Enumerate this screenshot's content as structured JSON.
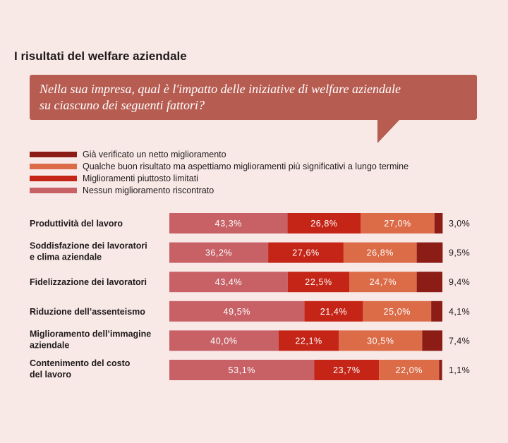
{
  "title": "I risultati del welfare aziendale",
  "question": {
    "line1": "Nella sua impresa, qual è l'impatto delle iniziative di welfare aziendale",
    "line2": "su ciascuno dei seguenti fattori?"
  },
  "colors": {
    "background": "#f8e9e7",
    "bubble": "#b75c51",
    "netto": "#8b1c16",
    "qualche": "#dc6b47",
    "limitati": "#c42517",
    "nessun": "#c76166"
  },
  "chart_data": {
    "type": "bar",
    "orientation": "horizontal",
    "stacked": true,
    "xlim": [
      0,
      100
    ],
    "legend": [
      {
        "key": "netto",
        "label": "Già verificato un netto miglioramento"
      },
      {
        "key": "qualche",
        "label": "Qualche buon risultato ma aspettiamo miglioramenti più significativi a lungo termine"
      },
      {
        "key": "limitati",
        "label": "Miglioramenti piuttosto limitati"
      },
      {
        "key": "nessun",
        "label": "Nessun miglioramento riscontrato"
      }
    ],
    "categories": [
      [
        "Produttività del lavoro"
      ],
      [
        "Soddisfazione dei lavoratori",
        "e clima aziendale"
      ],
      [
        "Fidelizzazione dei lavoratori"
      ],
      [
        "Riduzione dell’assenteismo"
      ],
      [
        "Miglioramento dell’immagine",
        "aziendale"
      ],
      [
        "Contenimento del costo",
        "del lavoro"
      ]
    ],
    "series": [
      {
        "key": "nessun",
        "values": [
          43.3,
          36.2,
          43.4,
          49.5,
          40.0,
          53.1
        ],
        "labels": [
          "43,3%",
          "36,2%",
          "43,4%",
          "49,5%",
          "40,0%",
          "53,1%"
        ]
      },
      {
        "key": "limitati",
        "values": [
          26.8,
          27.6,
          22.5,
          21.4,
          22.1,
          23.7
        ],
        "labels": [
          "26,8%",
          "27,6%",
          "22,5%",
          "21,4%",
          "22,1%",
          "23,7%"
        ]
      },
      {
        "key": "qualche",
        "values": [
          27.0,
          26.8,
          24.7,
          25.0,
          30.5,
          22.0
        ],
        "labels": [
          "27,0%",
          "26,8%",
          "24,7%",
          "25,0%",
          "30,5%",
          "22,0%"
        ]
      },
      {
        "key": "netto",
        "values": [
          3.0,
          9.5,
          9.4,
          4.1,
          7.4,
          1.1
        ],
        "labels": [
          "3,0%",
          "9,5%",
          "9,4%",
          "4,1%",
          "7,4%",
          "1,1%"
        ]
      }
    ]
  }
}
